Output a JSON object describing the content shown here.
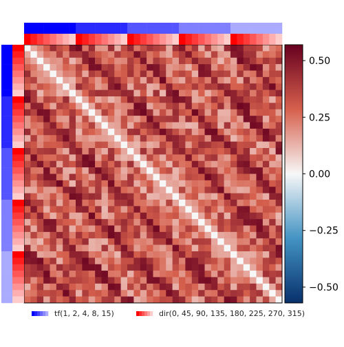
{
  "chart_data": {
    "type": "heatmap",
    "title": "",
    "matrix_size": 40,
    "conditions": {
      "tf": [
        1,
        2,
        4,
        8,
        15
      ],
      "dir": [
        0,
        45,
        90,
        135,
        180,
        225,
        270,
        315
      ],
      "order": "tf-major, dir-minor"
    },
    "colorbar": {
      "colormap": "seismic-like (blue-white-red)",
      "vmin": -0.57,
      "vmax": 0.57,
      "ticks": [
        -0.5,
        -0.25,
        0.0,
        0.25,
        0.5
      ],
      "tick_labels": [
        "−0.50",
        "−0.25",
        "0.00",
        "0.25",
        "0.50"
      ]
    },
    "structure": {
      "diagonal": 0.0,
      "same_direction_offdiag": 0.5,
      "adjacent_direction_offdiag": 0.38,
      "typical_offdiag": 0.28,
      "typical_offdiag_range": [
        0.0,
        0.5
      ]
    },
    "legend": [
      {
        "label": "tf(1, 2, 4, 8, 15)",
        "color_start": "#0000ff",
        "color_end": "#aaaaff"
      },
      {
        "label": "dir(0, 45, 90, 135, 180, 225, 270, 315)",
        "color_start": "#ff0000",
        "color_end": "#ffcccc"
      }
    ],
    "label_bar_colors": {
      "tf": [
        "#0000ff",
        "#2a2aff",
        "#5555ff",
        "#7f7fff",
        "#aaaaff"
      ],
      "dir_start": "#ff0000",
      "dir_end": "#ffcccc"
    }
  }
}
